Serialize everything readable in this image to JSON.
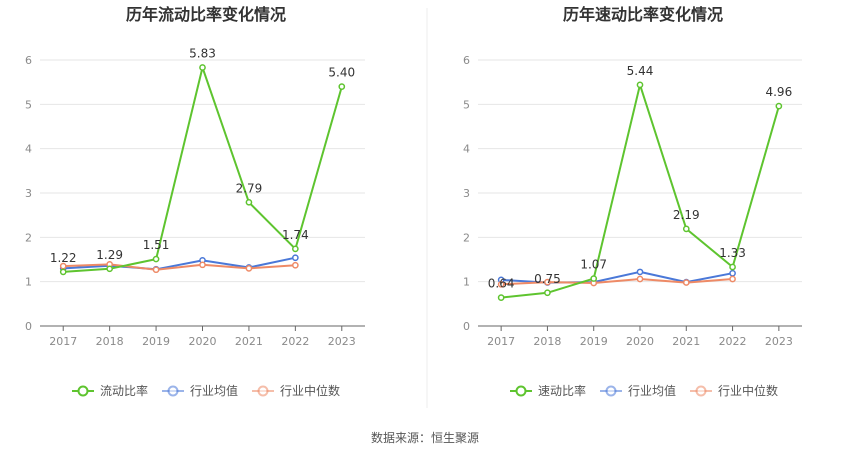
{
  "source_label": "数据来源：恒生聚源",
  "colors": {
    "company": "#5ec42f",
    "avg": "#4a78d8",
    "median": "#ee8a66",
    "grid": "#e6e6e6",
    "axis": "#666666"
  },
  "chart_data": [
    {
      "type": "line",
      "title": "历年流动比率变化情况",
      "x": [
        "2017",
        "2018",
        "2019",
        "2020",
        "2021",
        "2022",
        "2023"
      ],
      "ylim": [
        0,
        6
      ],
      "yticks": [
        "0",
        "1",
        "2",
        "3",
        "4",
        "5",
        "6"
      ],
      "grid": true,
      "legend_position": "bottom",
      "series": [
        {
          "name": "流动比率",
          "values": [
            1.22,
            1.29,
            1.51,
            5.83,
            2.79,
            1.74,
            5.4
          ],
          "labels": [
            "1.22",
            "1.29",
            "1.51",
            "5.83",
            "2.79",
            "1.74",
            "5.40"
          ]
        },
        {
          "name": "行业均值",
          "values": [
            1.3,
            1.36,
            1.28,
            1.48,
            1.32,
            1.54,
            null
          ]
        },
        {
          "name": "行业中位数",
          "values": [
            1.35,
            1.39,
            1.27,
            1.38,
            1.3,
            1.37,
            null
          ]
        }
      ]
    },
    {
      "type": "line",
      "title": "历年速动比率变化情况",
      "x": [
        "2017",
        "2018",
        "2019",
        "2020",
        "2021",
        "2022",
        "2023"
      ],
      "ylim": [
        0,
        6
      ],
      "yticks": [
        "0",
        "1",
        "2",
        "3",
        "4",
        "5",
        "6"
      ],
      "grid": true,
      "legend_position": "bottom",
      "series": [
        {
          "name": "速动比率",
          "values": [
            0.64,
            0.75,
            1.07,
            5.44,
            2.19,
            1.33,
            4.96
          ],
          "labels": [
            "0.64",
            "0.75",
            "1.07",
            "5.44",
            "2.19",
            "1.33",
            "4.96"
          ]
        },
        {
          "name": "行业均值",
          "values": [
            1.04,
            0.98,
            0.99,
            1.22,
            0.99,
            1.19,
            null
          ]
        },
        {
          "name": "行业中位数",
          "values": [
            0.94,
            0.99,
            0.97,
            1.06,
            0.98,
            1.06,
            null
          ]
        }
      ]
    }
  ]
}
